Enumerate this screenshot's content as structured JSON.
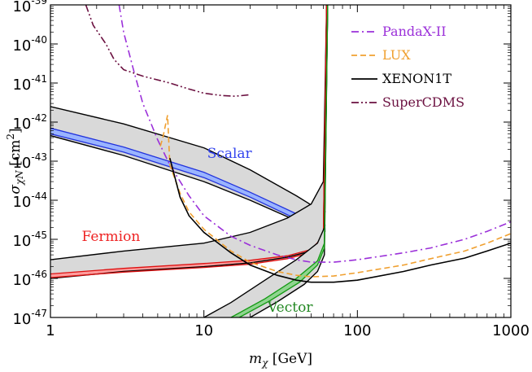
{
  "chart_data": {
    "type": "line",
    "title": "",
    "xlabel": "m_χ [GeV]",
    "ylabel": "σ_χN [cm²]",
    "xscale": "log",
    "yscale": "log",
    "xlim": [
      1,
      1000
    ],
    "ylim": [
      1e-47,
      1e-39
    ],
    "x_ticks": [
      {
        "value": 1,
        "label": "1"
      },
      {
        "value": 10,
        "label": "10"
      },
      {
        "value": 100,
        "label": "100"
      },
      {
        "value": 1000,
        "label": "1000"
      }
    ],
    "y_ticks": [
      {
        "value": 1e-47,
        "base": "10",
        "exp": "-47"
      },
      {
        "value": 1e-46,
        "base": "10",
        "exp": "-46"
      },
      {
        "value": 1e-45,
        "base": "10",
        "exp": "-45"
      },
      {
        "value": 1e-44,
        "base": "10",
        "exp": "-44"
      },
      {
        "value": 1e-43,
        "base": "10",
        "exp": "-43"
      },
      {
        "value": 1e-42,
        "base": "10",
        "exp": "-42"
      },
      {
        "value": 1e-41,
        "base": "10",
        "exp": "-41"
      },
      {
        "value": 1e-40,
        "base": "10",
        "exp": "-40"
      },
      {
        "value": 1e-39,
        "base": "10",
        "exp": "-39"
      }
    ],
    "legend_position": "top-right",
    "grid": false,
    "series": [
      {
        "name": "PandaX-II",
        "color": "#9b30d9",
        "dash": "dashdot",
        "points": [
          [
            2.8,
            1e-39
          ],
          [
            3.0,
            2e-40
          ],
          [
            3.5,
            2e-41
          ],
          [
            4.0,
            3e-42
          ],
          [
            5.0,
            3.5e-43
          ],
          [
            6.0,
            8e-44
          ],
          [
            8.0,
            1.3e-44
          ],
          [
            10.0,
            4e-45
          ],
          [
            15.0,
            1.2e-45
          ],
          [
            20.0,
            7e-46
          ],
          [
            30.0,
            4e-46
          ],
          [
            40.0,
            3e-46
          ],
          [
            50.0,
            2.6e-46
          ],
          [
            70.0,
            2.6e-46
          ],
          [
            100.0,
            3e-46
          ],
          [
            200.0,
            4.5e-46
          ],
          [
            300.0,
            6e-46
          ],
          [
            500.0,
            1e-45
          ],
          [
            700.0,
            1.6e-45
          ],
          [
            1000.0,
            2.8e-45
          ]
        ]
      },
      {
        "name": "LUX",
        "color": "#f0a030",
        "dash": "dashed",
        "points": [
          [
            5.2,
            2.4e-43
          ],
          [
            5.4,
            4e-43
          ],
          [
            5.6,
            8e-43
          ],
          [
            5.8,
            1.5e-42
          ],
          [
            6.0,
            8e-44
          ],
          [
            7.0,
            1.5e-44
          ],
          [
            8.0,
            5e-45
          ],
          [
            10.0,
            1.8e-45
          ],
          [
            15.0,
            5e-46
          ],
          [
            20.0,
            2.6e-46
          ],
          [
            30.0,
            1.5e-46
          ],
          [
            40.0,
            1.2e-46
          ],
          [
            50.0,
            1.1e-46
          ],
          [
            70.0,
            1.15e-46
          ],
          [
            100.0,
            1.4e-46
          ],
          [
            200.0,
            2.2e-46
          ],
          [
            300.0,
            3.2e-46
          ],
          [
            500.0,
            5e-46
          ],
          [
            700.0,
            8e-46
          ],
          [
            1000.0,
            1.4e-45
          ]
        ]
      },
      {
        "name": "XENON1T",
        "color": "#000000",
        "dash": "solid",
        "points": [
          [
            6.0,
            1.2e-43
          ],
          [
            7.0,
            1.2e-44
          ],
          [
            8.0,
            4e-45
          ],
          [
            10.0,
            1.5e-45
          ],
          [
            15.0,
            4.5e-46
          ],
          [
            20.0,
            2.2e-46
          ],
          [
            30.0,
            1.2e-46
          ],
          [
            40.0,
            9e-47
          ],
          [
            50.0,
            8e-47
          ],
          [
            70.0,
            8e-47
          ],
          [
            100.0,
            9e-47
          ],
          [
            200.0,
            1.5e-46
          ],
          [
            300.0,
            2.2e-46
          ],
          [
            500.0,
            3.3e-46
          ],
          [
            700.0,
            5e-46
          ],
          [
            1000.0,
            8e-46
          ]
        ]
      },
      {
        "name": "SuperCDMS",
        "color": "#6b1040",
        "dash": "dashdotdot",
        "points": [
          [
            1.7,
            1e-39
          ],
          [
            1.9,
            3e-40
          ],
          [
            2.3,
            1e-40
          ],
          [
            2.6,
            4e-41
          ],
          [
            3.0,
            2.2e-41
          ],
          [
            4.0,
            1.5e-41
          ],
          [
            6.0,
            1e-41
          ],
          [
            8.0,
            7e-42
          ],
          [
            10.0,
            5.5e-42
          ],
          [
            13.0,
            4.8e-42
          ],
          [
            16.0,
            4.6e-42
          ],
          [
            20.0,
            5e-42
          ]
        ]
      }
    ],
    "bands": [
      {
        "label": "Scalar",
        "label_color": "#3344ee",
        "line_color": "#2233dd",
        "fill": "#9ab4ff",
        "label_at": [
          10.5,
          1.2e-43
        ],
        "outer_upper": [
          [
            1,
            2.5e-42
          ],
          [
            3,
            9e-43
          ],
          [
            10,
            2.2e-43
          ],
          [
            20,
            6e-44
          ],
          [
            40,
            1.3e-44
          ],
          [
            55,
            6e-45
          ],
          [
            62,
            5e-45
          ]
        ],
        "outer_lower": [
          [
            1,
            4.5e-43
          ],
          [
            3,
            1.4e-43
          ],
          [
            10,
            3e-44
          ],
          [
            20,
            1e-44
          ],
          [
            40,
            3e-45
          ],
          [
            55,
            1.8e-45
          ],
          [
            62,
            1.6e-45
          ]
        ],
        "inner_upper": [
          [
            1,
            7e-43
          ],
          [
            3,
            2.3e-43
          ],
          [
            10,
            5.2e-44
          ],
          [
            20,
            1.6e-44
          ],
          [
            40,
            4.5e-45
          ],
          [
            55,
            2.6e-45
          ],
          [
            62,
            2.3e-45
          ]
        ],
        "inner_lower": [
          [
            1,
            5e-43
          ],
          [
            3,
            1.7e-43
          ],
          [
            10,
            3.8e-44
          ],
          [
            20,
            1.2e-44
          ],
          [
            40,
            3.3e-45
          ],
          [
            55,
            2e-45
          ],
          [
            62,
            1.8e-45
          ]
        ]
      },
      {
        "label": "Fermion",
        "label_color": "#ee2222",
        "line_color": "#dd1111",
        "fill": "#ff9c9c",
        "label_at": [
          1.6,
          9e-46
        ],
        "outer_upper": [
          [
            1,
            3e-46
          ],
          [
            3,
            5e-46
          ],
          [
            10,
            8e-46
          ],
          [
            20,
            1.5e-45
          ],
          [
            35,
            3.5e-45
          ],
          [
            50,
            8e-45
          ],
          [
            60,
            3e-44
          ],
          [
            63,
            1e-39
          ]
        ],
        "outer_lower": [
          [
            1,
            1e-46
          ],
          [
            3,
            1.5e-46
          ],
          [
            10,
            2e-46
          ],
          [
            20,
            2.5e-46
          ],
          [
            35,
            3.5e-46
          ],
          [
            50,
            5e-46
          ],
          [
            60,
            1e-45
          ],
          [
            63,
            1e-39
          ]
        ],
        "inner_upper": [
          [
            1,
            1.3e-46
          ],
          [
            3,
            1.8e-46
          ],
          [
            10,
            2.4e-46
          ],
          [
            20,
            2.9e-46
          ],
          [
            35,
            3.8e-46
          ],
          [
            50,
            5.5e-46
          ],
          [
            60,
            1.2e-45
          ],
          [
            63,
            1e-39
          ]
        ],
        "inner_lower": [
          [
            1,
            1.05e-46
          ],
          [
            3,
            1.45e-46
          ],
          [
            10,
            1.9e-46
          ],
          [
            20,
            2.3e-46
          ],
          [
            35,
            3.2e-46
          ],
          [
            50,
            4.6e-46
          ],
          [
            60,
            1e-45
          ],
          [
            63,
            1e-39
          ]
        ]
      },
      {
        "label": "Vector",
        "label_color": "#228822",
        "line_color": "#119911",
        "fill": "#8fd48f",
        "label_at": [
          26,
          1.4e-47
        ],
        "outer_upper": [
          [
            10,
            1e-47
          ],
          [
            15,
            2.4e-47
          ],
          [
            25,
            9e-47
          ],
          [
            40,
            3e-46
          ],
          [
            55,
            8e-46
          ],
          [
            61,
            2e-45
          ],
          [
            64,
            1e-39
          ]
        ],
        "outer_lower": [
          [
            20,
            1e-47
          ],
          [
            30,
            2.5e-47
          ],
          [
            45,
            7e-47
          ],
          [
            55,
            1.5e-46
          ],
          [
            61,
            4e-46
          ],
          [
            64,
            1e-39
          ]
        ],
        "inner_upper": [
          [
            15,
            1e-47
          ],
          [
            25,
            3e-47
          ],
          [
            40,
            1e-46
          ],
          [
            55,
            2.8e-46
          ],
          [
            61,
            8e-46
          ],
          [
            64,
            1e-39
          ]
        ],
        "inner_lower": [
          [
            17,
            1e-47
          ],
          [
            27,
            2.7e-47
          ],
          [
            42,
            8e-47
          ],
          [
            55,
            2.2e-46
          ],
          [
            61,
            6e-46
          ],
          [
            64,
            1e-39
          ]
        ]
      }
    ]
  }
}
